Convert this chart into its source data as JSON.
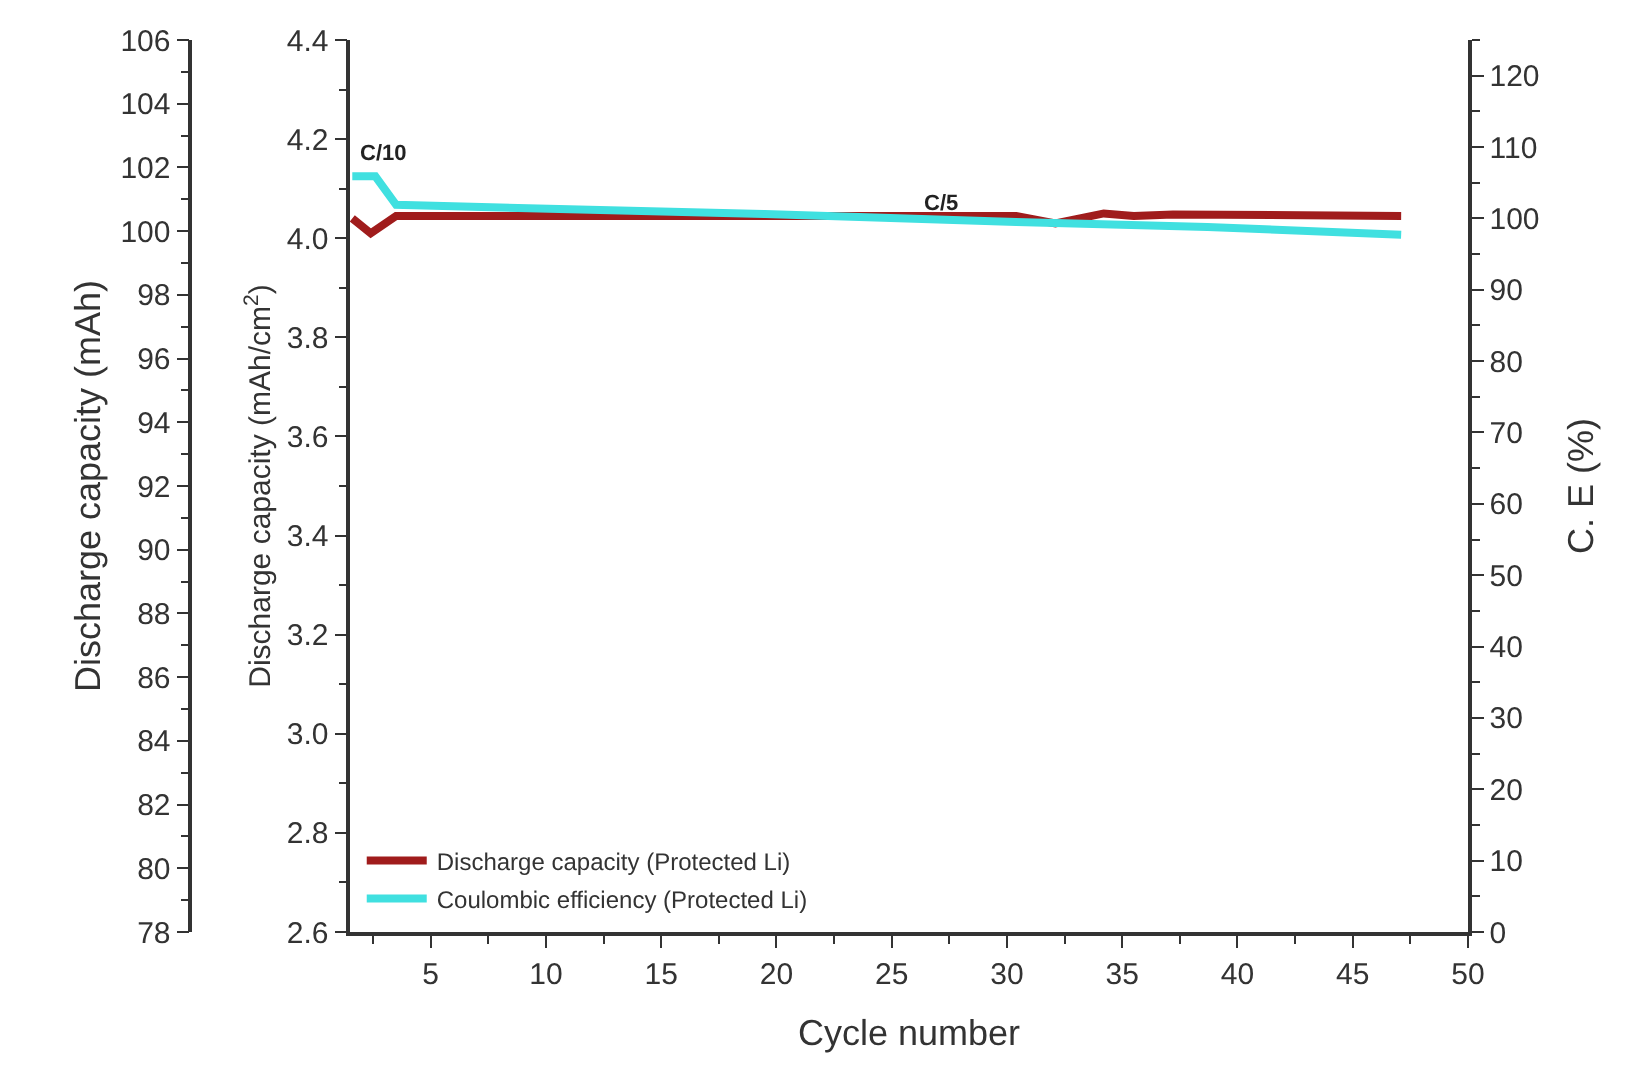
{
  "chart_data": {
    "type": "line",
    "xlabel": "Cycle number",
    "ylabel": "Discharge capacity (mAh/cm$^{2}$)",
    "y2label": "C. E (%)",
    "y3label": "Discharge capacity (mAh)",
    "xlim": [
      1.5,
      50
    ],
    "xticks": [
      5,
      10,
      15,
      20,
      25,
      30,
      35,
      40,
      45,
      50
    ],
    "ylim": [
      2.6,
      4.4
    ],
    "yticks": [
      {
        "value": 2.6,
        "label": "2.6"
      },
      {
        "value": 2.8,
        "label": "2.8"
      },
      {
        "value": 3.0,
        "label": "3.0"
      },
      {
        "value": 3.2,
        "label": "3.2"
      },
      {
        "value": 3.4,
        "label": "3.4"
      },
      {
        "value": 3.6,
        "label": "3.6"
      },
      {
        "value": 3.8,
        "label": "3.8"
      },
      {
        "value": 4.0,
        "label": "4.0"
      },
      {
        "value": 4.2,
        "label": "4.2"
      },
      {
        "value": 4.4,
        "label": "4.4"
      }
    ],
    "y2lim": [
      0,
      125
    ],
    "y2ticks": [
      0,
      10,
      20,
      30,
      40,
      50,
      60,
      70,
      80,
      90,
      100,
      110,
      120
    ],
    "y3lim": [
      78,
      106
    ],
    "y3ticks": [
      78,
      80,
      82,
      84,
      86,
      88,
      90,
      92,
      94,
      96,
      98,
      100,
      102,
      104,
      106
    ],
    "legend": "bottom left",
    "marker": "none",
    "line_style": "solid",
    "series": [
      {
        "name": "Discharge capacity (Protected Li)",
        "color": "#a01c1c",
        "x": [
          1.6,
          2.4,
          3.5,
          30.4,
          32.1,
          34.2,
          35.5,
          37.2,
          47.1
        ],
        "values": [
          4.04,
          4.01,
          4.045,
          4.045,
          4.03,
          4.05,
          4.045,
          4.048,
          4.045
        ]
      },
      {
        "name": "Coulombic efficiency (Protected Li)",
        "color": "#40e0e0",
        "axis": "y2",
        "x": [
          1.6,
          2.6,
          3.5,
          19.5,
          30.4,
          38.7,
          47.1
        ],
        "values": [
          105.9,
          105.9,
          101.9,
          100.6,
          99.5,
          98.8,
          97.7
        ]
      }
    ],
    "annotations": [
      "C/10",
      "C/5"
    ]
  }
}
